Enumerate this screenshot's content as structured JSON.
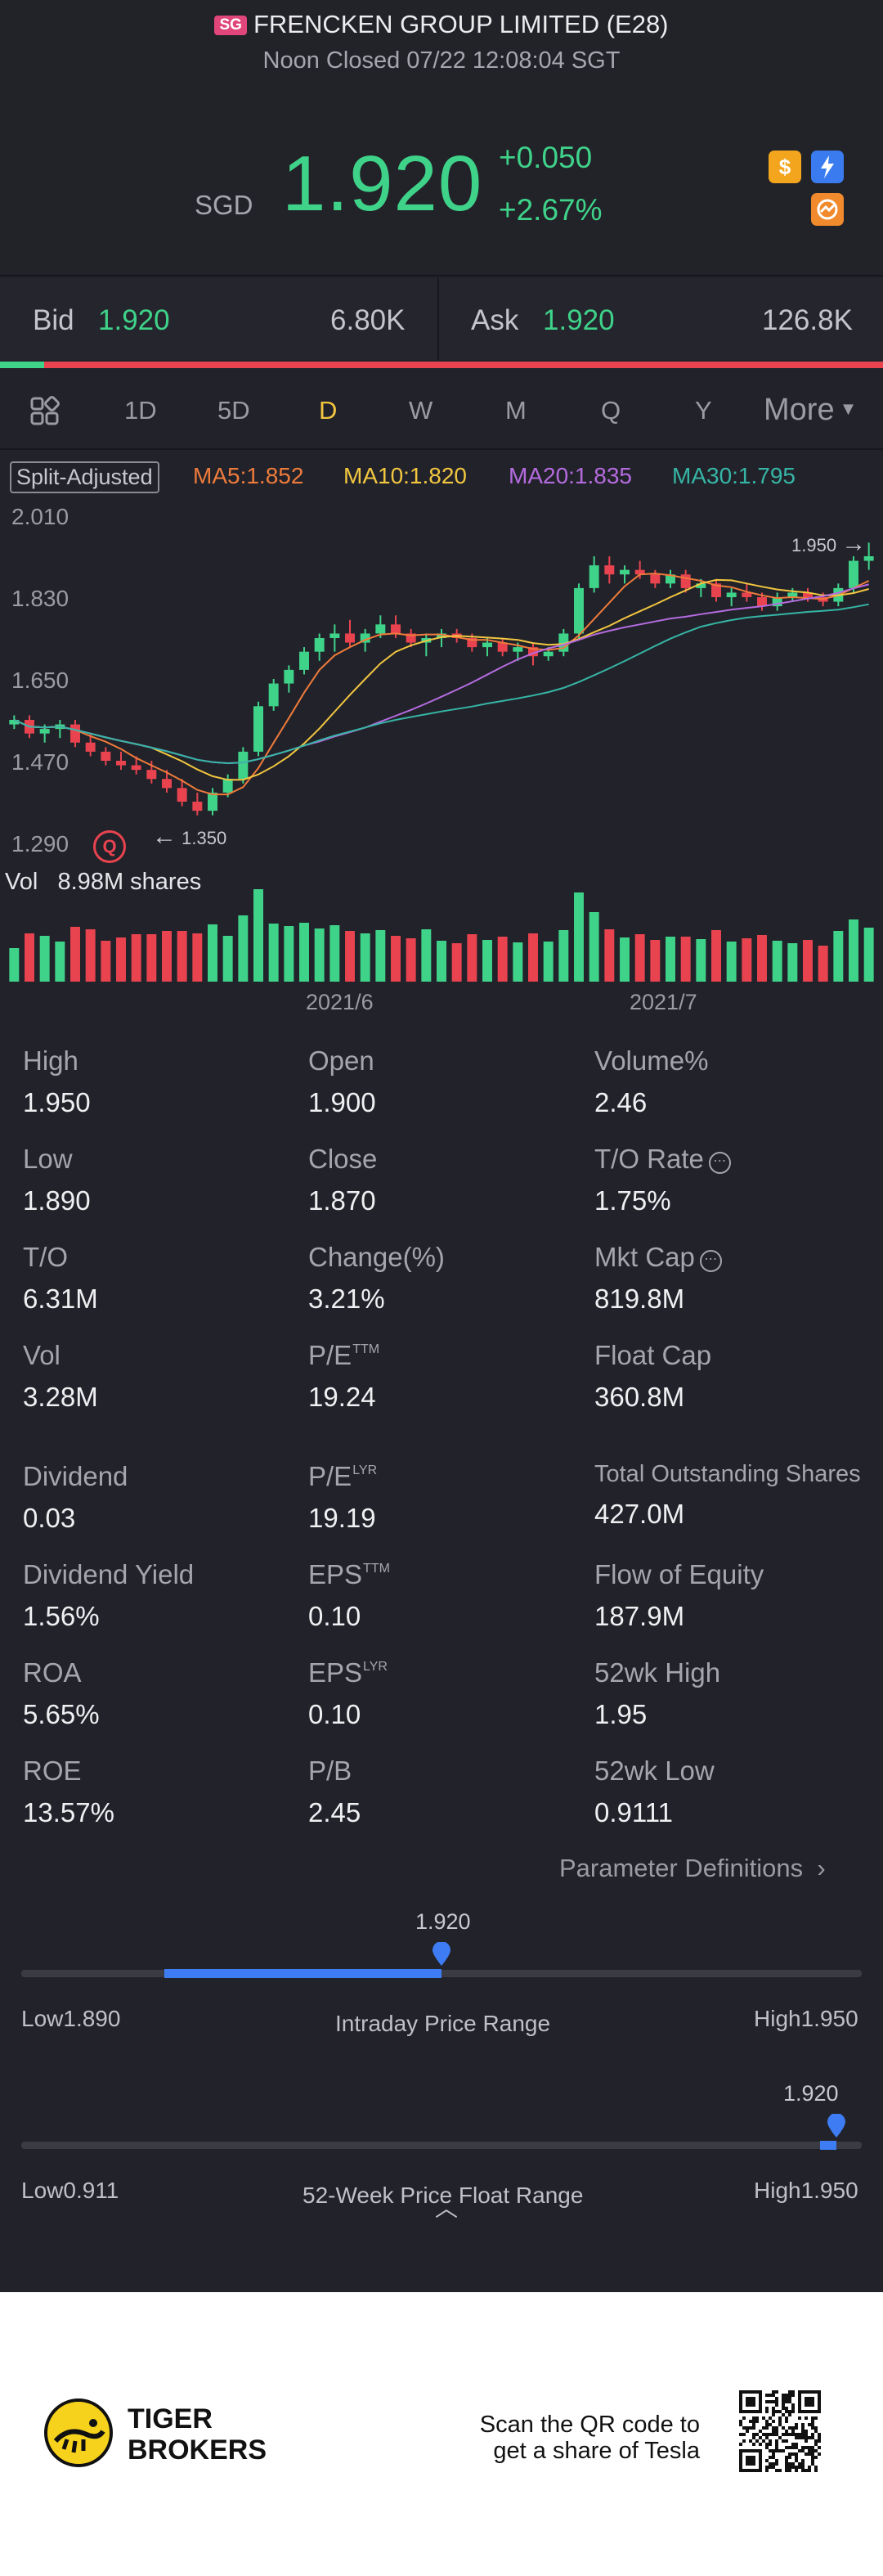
{
  "header": {
    "market_badge": "SG",
    "title": "FRENCKEN GROUP LIMITED (E28)",
    "status": "Noon Closed 07/22 12:08:04 SGT",
    "currency": "SGD",
    "price": "1.920",
    "change": "+0.050",
    "change_pct": "+2.67%",
    "icons": [
      "dollar-icon",
      "flash-icon",
      "trend-icon"
    ],
    "up_color": "#3fd38a",
    "down_color": "#e8434f"
  },
  "bid_ask": {
    "bid_label": "Bid",
    "bid_price": "1.920",
    "bid_size": "6.80K",
    "ask_label": "Ask",
    "ask_price": "1.920",
    "ask_size": "126.8K"
  },
  "periods": {
    "items": [
      "1D",
      "5D",
      "D",
      "W",
      "M",
      "Q",
      "Y"
    ],
    "active": "D",
    "more": "More"
  },
  "ma": {
    "split_label": "Split-Adjusted",
    "ma5": "MA5:1.852",
    "ma10": "MA10:1.820",
    "ma20": "MA20:1.835",
    "ma30": "MA30:1.795",
    "colors": {
      "ma5": "#ef7b3b",
      "ma10": "#f2c640",
      "ma20": "#b56be0",
      "ma30": "#36b5a6"
    }
  },
  "chart_data": {
    "type": "candlestick",
    "y_ticks": [
      "2.010",
      "1.830",
      "1.650",
      "1.470",
      "1.290"
    ],
    "ylim": [
      1.29,
      2.01
    ],
    "x_labels": [
      "2021/6",
      "2021/7"
    ],
    "high_label": "1.950",
    "low_label": "1.350",
    "candles": [
      [
        1.55,
        1.57,
        1.54,
        1.56
      ],
      [
        1.56,
        1.57,
        1.52,
        1.53
      ],
      [
        1.53,
        1.55,
        1.51,
        1.54
      ],
      [
        1.54,
        1.56,
        1.52,
        1.55
      ],
      [
        1.55,
        1.56,
        1.5,
        1.51
      ],
      [
        1.51,
        1.53,
        1.48,
        1.49
      ],
      [
        1.49,
        1.5,
        1.46,
        1.47
      ],
      [
        1.47,
        1.49,
        1.45,
        1.46
      ],
      [
        1.46,
        1.48,
        1.44,
        1.45
      ],
      [
        1.45,
        1.47,
        1.42,
        1.43
      ],
      [
        1.43,
        1.45,
        1.4,
        1.41
      ],
      [
        1.41,
        1.43,
        1.37,
        1.38
      ],
      [
        1.38,
        1.4,
        1.35,
        1.36
      ],
      [
        1.36,
        1.41,
        1.35,
        1.4
      ],
      [
        1.4,
        1.44,
        1.39,
        1.43
      ],
      [
        1.43,
        1.5,
        1.42,
        1.49
      ],
      [
        1.49,
        1.6,
        1.48,
        1.59
      ],
      [
        1.59,
        1.65,
        1.58,
        1.64
      ],
      [
        1.64,
        1.68,
        1.62,
        1.67
      ],
      [
        1.67,
        1.72,
        1.66,
        1.71
      ],
      [
        1.71,
        1.75,
        1.69,
        1.74
      ],
      [
        1.74,
        1.77,
        1.71,
        1.75
      ],
      [
        1.75,
        1.78,
        1.72,
        1.73
      ],
      [
        1.73,
        1.76,
        1.71,
        1.75
      ],
      [
        1.75,
        1.79,
        1.74,
        1.77
      ],
      [
        1.77,
        1.79,
        1.74,
        1.75
      ],
      [
        1.75,
        1.76,
        1.72,
        1.73
      ],
      [
        1.73,
        1.75,
        1.7,
        1.74
      ],
      [
        1.74,
        1.76,
        1.72,
        1.75
      ],
      [
        1.75,
        1.76,
        1.73,
        1.74
      ],
      [
        1.74,
        1.75,
        1.71,
        1.72
      ],
      [
        1.72,
        1.74,
        1.7,
        1.73
      ],
      [
        1.73,
        1.74,
        1.7,
        1.71
      ],
      [
        1.71,
        1.73,
        1.69,
        1.72
      ],
      [
        1.72,
        1.73,
        1.68,
        1.7
      ],
      [
        1.7,
        1.72,
        1.69,
        1.71
      ],
      [
        1.71,
        1.76,
        1.7,
        1.75
      ],
      [
        1.75,
        1.86,
        1.74,
        1.85
      ],
      [
        1.85,
        1.92,
        1.84,
        1.9
      ],
      [
        1.9,
        1.92,
        1.86,
        1.88
      ],
      [
        1.88,
        1.9,
        1.86,
        1.89
      ],
      [
        1.89,
        1.91,
        1.87,
        1.88
      ],
      [
        1.88,
        1.89,
        1.85,
        1.86
      ],
      [
        1.86,
        1.89,
        1.85,
        1.88
      ],
      [
        1.88,
        1.89,
        1.84,
        1.85
      ],
      [
        1.85,
        1.87,
        1.83,
        1.86
      ],
      [
        1.86,
        1.87,
        1.82,
        1.83
      ],
      [
        1.83,
        1.85,
        1.81,
        1.84
      ],
      [
        1.84,
        1.86,
        1.82,
        1.83
      ],
      [
        1.83,
        1.84,
        1.8,
        1.81
      ],
      [
        1.81,
        1.84,
        1.8,
        1.83
      ],
      [
        1.83,
        1.85,
        1.82,
        1.84
      ],
      [
        1.84,
        1.85,
        1.82,
        1.83
      ],
      [
        1.83,
        1.84,
        1.81,
        1.82
      ],
      [
        1.82,
        1.86,
        1.81,
        1.85
      ],
      [
        1.85,
        1.92,
        1.84,
        1.91
      ],
      [
        1.91,
        1.95,
        1.89,
        1.92
      ]
    ],
    "volume_label": "Vol",
    "volume_value": "8.98M shares"
  },
  "stats": [
    {
      "label": "High",
      "value": "1.950"
    },
    {
      "label": "Open",
      "value": "1.900"
    },
    {
      "label": "Volume%",
      "value": "2.46"
    },
    {
      "label": "Low",
      "value": "1.890"
    },
    {
      "label": "Close",
      "value": "1.870"
    },
    {
      "label": "T/O Rate",
      "value": "1.75%",
      "info": true
    },
    {
      "label": "T/O",
      "value": "6.31M"
    },
    {
      "label": "Change(%)",
      "value": "3.21%"
    },
    {
      "label": "Mkt Cap",
      "value": "819.8M",
      "info": true
    },
    {
      "label": "Vol",
      "value": "3.28M"
    },
    {
      "label": "P/E",
      "sup": "TTM",
      "value": "19.24"
    },
    {
      "label": "Float Cap",
      "value": "360.8M"
    },
    {
      "label": "Dividend",
      "value": "0.03"
    },
    {
      "label": "P/E",
      "sup": "LYR",
      "value": "19.19"
    },
    {
      "label": "Total Outstanding Shares",
      "value": "427.0M",
      "small": true
    },
    {
      "label": "Dividend Yield",
      "value": "1.56%"
    },
    {
      "label": "EPS",
      "sup": "TTM",
      "value": "0.10"
    },
    {
      "label": "Flow of Equity",
      "value": "187.9M"
    },
    {
      "label": "ROA",
      "value": "5.65%"
    },
    {
      "label": "EPS",
      "sup": "LYR",
      "value": "0.10"
    },
    {
      "label": "52wk High",
      "value": "1.95"
    },
    {
      "label": "ROE",
      "value": "13.57%"
    },
    {
      "label": "P/B",
      "value": "2.45"
    },
    {
      "label": "52wk Low",
      "value": "0.9111"
    }
  ],
  "param_link": "Parameter Definitions",
  "intraday_range": {
    "current": "1.920",
    "low": "Low1.890",
    "high": "High1.950",
    "label": "Intraday Price Range",
    "fill_start_fraction": 0.17,
    "position_fraction": 0.5
  },
  "week52_range": {
    "current": "1.920",
    "low": "Low0.911",
    "high": "High1.950",
    "label": "52-Week Price Float Range",
    "fill_start_fraction": 0.95,
    "position_fraction": 0.97
  },
  "footer": {
    "brand_line1": "TIGER",
    "brand_line2": "BROKERS",
    "scan_line1": "Scan the QR code to",
    "scan_line2": "get a share of Tesla"
  }
}
